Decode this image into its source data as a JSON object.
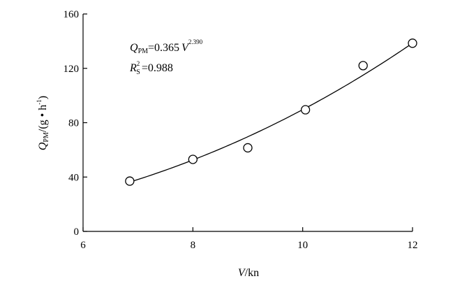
{
  "chart_data": {
    "type": "scatter",
    "xlim": [
      6,
      12
    ],
    "ylim": [
      0,
      160
    ],
    "x_ticks": [
      6,
      8,
      10,
      12
    ],
    "y_ticks": [
      0,
      40,
      80,
      120,
      160
    ],
    "x_tick_labels": [
      "6",
      "8",
      "10",
      "12"
    ],
    "y_tick_labels": [
      "0",
      "40",
      "80",
      "120",
      "160"
    ],
    "xlabel": {
      "var": "V",
      "unit": "/kn"
    },
    "ylabel": {
      "var": "Q",
      "sub": "PM",
      "unit": "/(g • h",
      "unit_sup": "-1",
      "unit_end": ")"
    },
    "series": [
      {
        "marker": "open-circle",
        "x": [
          6.85,
          8.0,
          9.0,
          10.05,
          11.1,
          12.0
        ],
        "y": [
          37,
          53,
          61.5,
          89.5,
          122,
          138.5
        ]
      }
    ],
    "fit": {
      "coef": 0.365,
      "exponent": 2.39,
      "x_range": [
        6.85,
        12.0
      ]
    },
    "annotations": {
      "equation": {
        "lhs": "Q",
        "lhs_sub": "PM",
        "rhs": "=0.365",
        "var": "V",
        "exponent": "2.390"
      },
      "r2": {
        "lhs": "R",
        "lhs_sup": "2",
        "lhs_sub": "S",
        "rhs": "=0.988"
      }
    },
    "grid": false,
    "legend": "none"
  }
}
